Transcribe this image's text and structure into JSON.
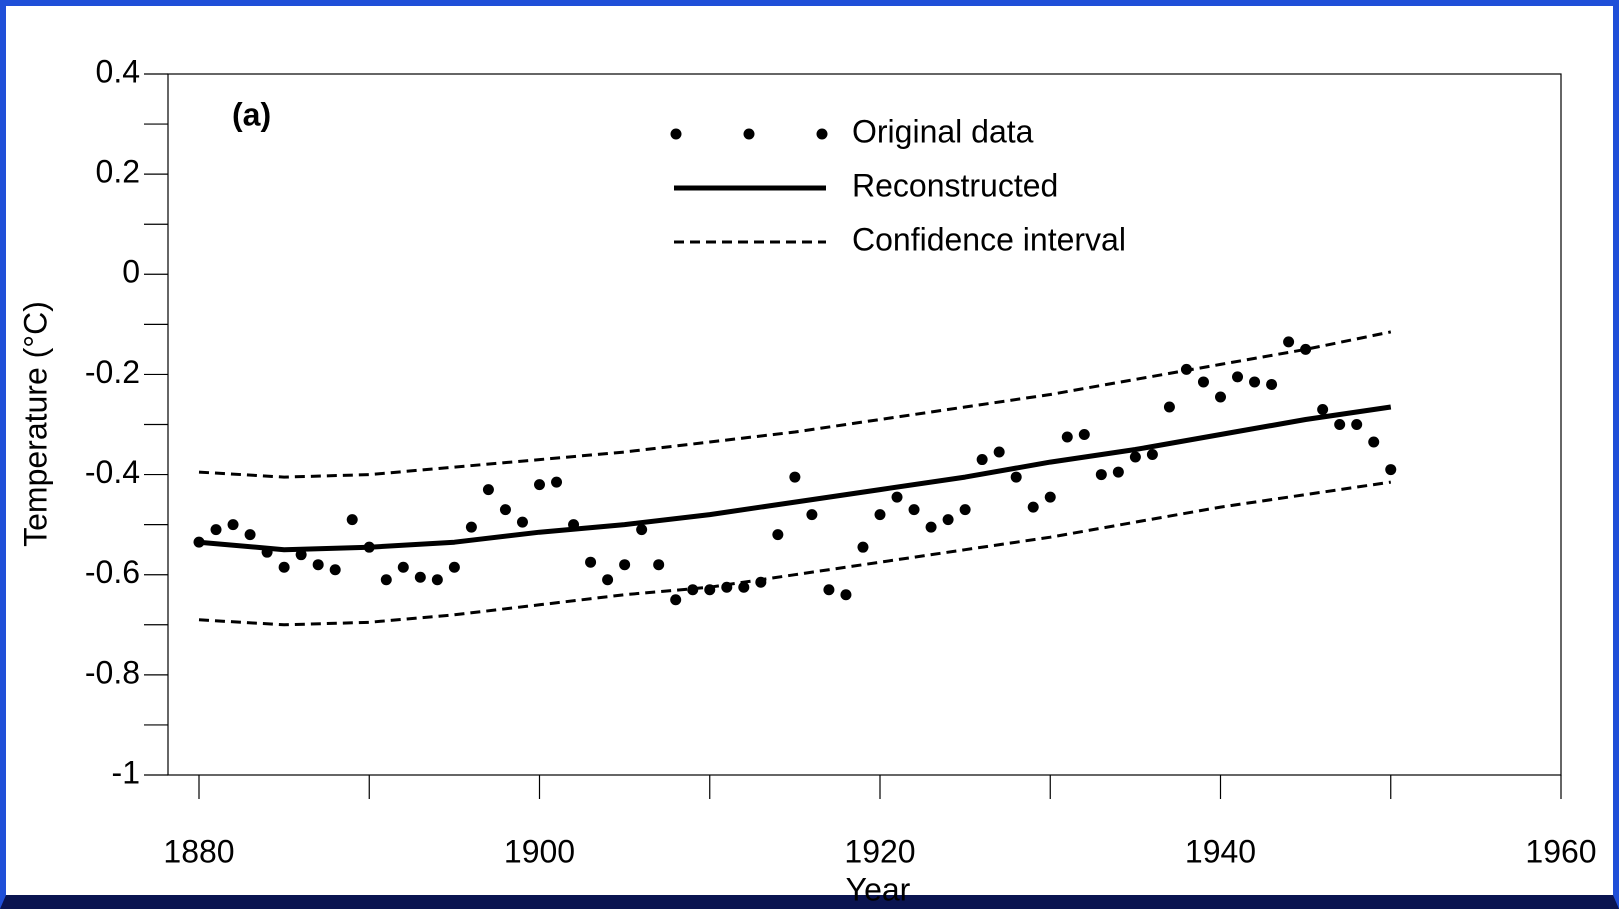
{
  "chart_data": {
    "type": "scatter",
    "annotation": "(a)",
    "xlabel": "Year",
    "ylabel": "Temperature (°C)",
    "xlim": [
      1880,
      1960
    ],
    "xticks": [
      1880,
      1900,
      1920,
      1940,
      1960
    ],
    "ylim": [
      -1,
      0.4
    ],
    "yticks": [
      0.4,
      0.2,
      0,
      -0.2,
      -0.4,
      -0.6,
      -0.8,
      -1
    ],
    "legend": "upper center",
    "series": [
      {
        "name": "Original data",
        "type": "scatter",
        "color": "#000000",
        "x": [
          1880,
          1881,
          1882,
          1883,
          1884,
          1885,
          1886,
          1887,
          1888,
          1889,
          1890,
          1891,
          1892,
          1893,
          1894,
          1895,
          1896,
          1897,
          1898,
          1899,
          1900,
          1901,
          1902,
          1903,
          1904,
          1905,
          1906,
          1907,
          1908,
          1909,
          1910,
          1911,
          1912,
          1913,
          1914,
          1915,
          1916,
          1917,
          1918,
          1919,
          1920,
          1921,
          1922,
          1923,
          1924,
          1925,
          1926,
          1927,
          1928,
          1929,
          1930,
          1931,
          1932,
          1933,
          1934,
          1935,
          1936,
          1937,
          1938,
          1939,
          1940,
          1941,
          1942,
          1943,
          1944,
          1945,
          1946,
          1947,
          1948,
          1949,
          1950
        ],
        "values": [
          -0.535,
          -0.51,
          -0.5,
          -0.52,
          -0.555,
          -0.585,
          -0.56,
          -0.58,
          -0.59,
          -0.49,
          -0.545,
          -0.61,
          -0.585,
          -0.605,
          -0.61,
          -0.585,
          -0.505,
          -0.43,
          -0.47,
          -0.495,
          -0.42,
          -0.415,
          -0.5,
          -0.575,
          -0.61,
          -0.58,
          -0.51,
          -0.58,
          -0.65,
          -0.63,
          -0.63,
          -0.625,
          -0.625,
          -0.615,
          -0.52,
          -0.405,
          -0.48,
          -0.63,
          -0.64,
          -0.545,
          -0.48,
          -0.445,
          -0.47,
          -0.505,
          -0.49,
          -0.47,
          -0.37,
          -0.355,
          -0.405,
          -0.465,
          -0.445,
          -0.325,
          -0.32,
          -0.4,
          -0.395,
          -0.365,
          -0.36,
          -0.265,
          -0.19,
          -0.215,
          -0.245,
          -0.205,
          -0.215,
          -0.22,
          -0.135,
          -0.15,
          -0.27,
          -0.3,
          -0.3,
          -0.335,
          -0.39
        ]
      },
      {
        "name": "Reconstructed",
        "type": "line",
        "color": "#000000",
        "x": [
          1880,
          1885,
          1890,
          1895,
          1900,
          1905,
          1910,
          1915,
          1920,
          1925,
          1930,
          1935,
          1940,
          1945,
          1950
        ],
        "values": [
          -0.535,
          -0.55,
          -0.545,
          -0.535,
          -0.515,
          -0.5,
          -0.48,
          -0.455,
          -0.43,
          -0.405,
          -0.375,
          -0.35,
          -0.32,
          -0.29,
          -0.265
        ]
      },
      {
        "name": "Confidence interval",
        "type": "dashed",
        "color": "#000000",
        "x": [
          1880,
          1885,
          1890,
          1895,
          1900,
          1905,
          1910,
          1915,
          1920,
          1925,
          1930,
          1935,
          1940,
          1945,
          1950
        ],
        "values": [
          -0.395,
          -0.405,
          -0.4,
          -0.385,
          -0.37,
          -0.355,
          -0.335,
          -0.315,
          -0.29,
          -0.265,
          -0.24,
          -0.21,
          -0.18,
          -0.15,
          -0.115
        ]
      },
      {
        "name": "Confidence interval",
        "type": "dashed",
        "color": "#000000",
        "legend": false,
        "x": [
          1880,
          1885,
          1890,
          1895,
          1900,
          1905,
          1910,
          1915,
          1920,
          1925,
          1930,
          1935,
          1940,
          1945,
          1950
        ],
        "values": [
          -0.69,
          -0.7,
          -0.695,
          -0.68,
          -0.66,
          -0.64,
          -0.625,
          -0.6,
          -0.575,
          -0.55,
          -0.525,
          -0.495,
          -0.465,
          -0.44,
          -0.415
        ]
      }
    ]
  }
}
